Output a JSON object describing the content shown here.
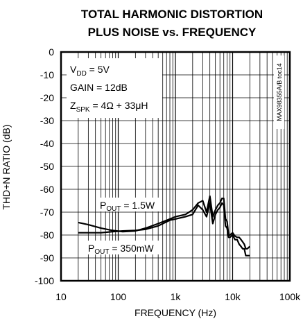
{
  "chart_data": {
    "type": "line",
    "title_line1": "TOTAL HARMONIC DISTORTION",
    "title_line2": "PLUS NOISE vs. FREQUENCY",
    "xlabel": "FREQUENCY (Hz)",
    "ylabel": "THD+N RATIO (dB)",
    "x_scale": "log",
    "xlim": [
      10,
      100000
    ],
    "ylim": [
      -100,
      0
    ],
    "x_ticks": [
      10,
      100,
      1000,
      10000,
      100000
    ],
    "x_tick_labels": [
      "10",
      "100",
      "1k",
      "10k",
      "100k"
    ],
    "y_ticks": [
      0,
      -10,
      -20,
      -30,
      -40,
      -50,
      -60,
      -70,
      -80,
      -90,
      -100
    ],
    "y_tick_labels": [
      "0",
      "-10",
      "-20",
      "-30",
      "-40",
      "-50",
      "-60",
      "-70",
      "-80",
      "-90",
      "-100"
    ],
    "grid": true,
    "conditions": {
      "vdd": {
        "main": "V",
        "sub": "DD",
        "rest": " = 5V"
      },
      "gain": "GAIN = 12dB",
      "zspk": {
        "main": "Z",
        "sub": "SPK",
        "rest": " = 4Ω + 33μH"
      }
    },
    "side_label": "MAX98355A/B toc14",
    "series": [
      {
        "label": {
          "main": "P",
          "sub": "OUT",
          "rest": " = 1.5W"
        },
        "x": [
          20,
          30,
          50,
          80,
          120,
          200,
          300,
          500,
          800,
          1000,
          1500,
          2000,
          2500,
          3000,
          3500,
          4000,
          4500,
          5000,
          5500,
          6000,
          6500,
          7000,
          7500,
          8000,
          8500,
          9000,
          10000,
          11000,
          12000,
          13000,
          14000,
          15000,
          16000,
          17000,
          18000,
          20000
        ],
        "y": [
          -74.5,
          -75.5,
          -77,
          -78,
          -78.5,
          -78.2,
          -77,
          -75,
          -73,
          -72,
          -71,
          -69,
          -66,
          -65,
          -70,
          -63,
          -72,
          -69,
          -67,
          -66,
          -64,
          -64,
          -73,
          -74,
          -80,
          -80,
          -79,
          -80.5,
          -81,
          -81,
          -82,
          -83,
          -84,
          -86,
          -86,
          -85
        ]
      },
      {
        "label": {
          "main": "P",
          "sub": "OUT",
          "rest": " = 350mW"
        },
        "x": [
          20,
          30,
          50,
          80,
          120,
          200,
          300,
          500,
          800,
          1000,
          1500,
          2000,
          2500,
          3000,
          3500,
          4000,
          4500,
          5000,
          5500,
          6000,
          6500,
          7000,
          7500,
          8000,
          8500,
          9000,
          10000,
          11000,
          12000,
          13000,
          14000,
          15000,
          16000,
          17000,
          18000,
          20000
        ],
        "y": [
          -79,
          -79,
          -79,
          -78.5,
          -78.2,
          -78,
          -77.5,
          -76,
          -73.5,
          -73,
          -72,
          -71,
          -67,
          -69,
          -72,
          -66,
          -75,
          -71,
          -69,
          -68,
          -66,
          -67,
          -76,
          -77,
          -81,
          -81,
          -80,
          -82,
          -82,
          -84,
          -85,
          -86,
          -86,
          -89,
          -89,
          -89
        ]
      }
    ]
  }
}
